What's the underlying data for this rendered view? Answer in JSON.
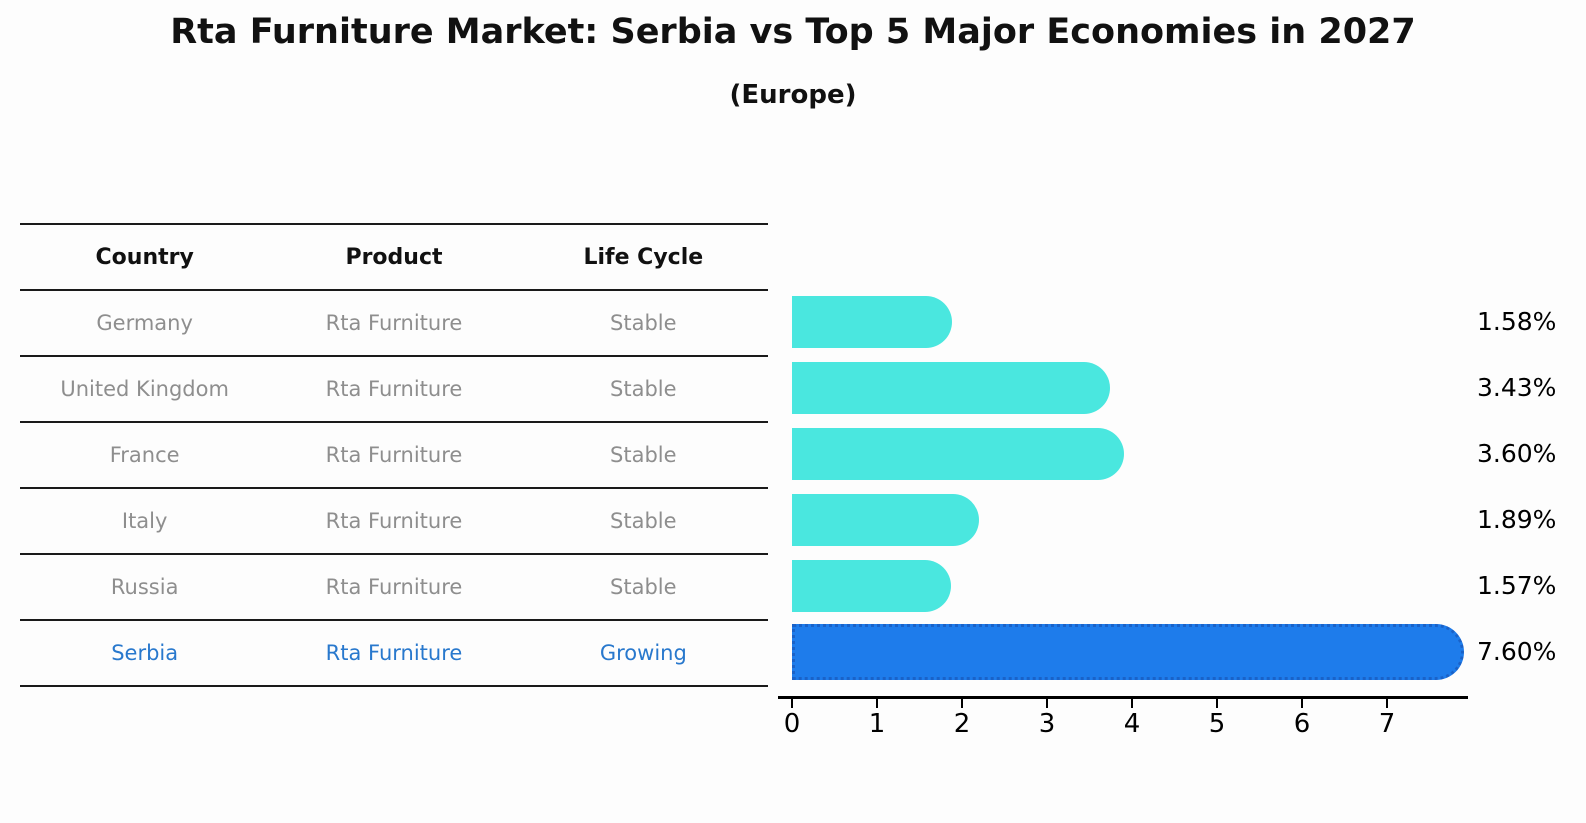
{
  "header": {
    "title": "Rta Furniture Market: Serbia vs Top 5 Major Economies in 2027",
    "subtitle": "(Europe)"
  },
  "table": {
    "headers": [
      "Country",
      "Product",
      "Life Cycle"
    ],
    "rows": [
      {
        "country": "Germany",
        "product": "Rta Furniture",
        "life_cycle": "Stable"
      },
      {
        "country": "United Kingdom",
        "product": "Rta Furniture",
        "life_cycle": "Stable"
      },
      {
        "country": "France",
        "product": "Rta Furniture",
        "life_cycle": "Stable"
      },
      {
        "country": "Italy",
        "product": "Rta Furniture",
        "life_cycle": "Stable"
      },
      {
        "country": "Russia",
        "product": "Rta Furniture",
        "life_cycle": "Stable"
      },
      {
        "country": "Serbia",
        "product": "Rta Furniture",
        "life_cycle": "Growing"
      }
    ]
  },
  "chart_data": {
    "type": "bar",
    "orientation": "horizontal",
    "title": "Rta Furniture Market: Serbia vs Top 5 Major Economies in 2027 (Europe)",
    "categories": [
      "Germany",
      "United Kingdom",
      "France",
      "Italy",
      "Russia",
      "Serbia"
    ],
    "values": [
      1.58,
      3.43,
      3.6,
      1.89,
      1.57,
      7.6
    ],
    "value_labels": [
      "1.58%",
      "3.43%",
      "3.60%",
      "1.89%",
      "1.57%",
      "7.60%"
    ],
    "highlight_category": "Serbia",
    "x_ticks": [
      "0",
      "1",
      "2",
      "3",
      "4",
      "5",
      "6",
      "7"
    ],
    "xlim": [
      0,
      7.95
    ],
    "grid": "off",
    "legend": "none",
    "xlabel": "",
    "ylabel": ""
  },
  "colors": {
    "bg": "#FDFDFD",
    "teal": "#4AE7DF",
    "blue": "#1E7CEB",
    "blue_border": "#1A62C8",
    "gray": "#8E8E8E",
    "highlight_text": "#2878CD",
    "line": "#1A1A1A"
  }
}
